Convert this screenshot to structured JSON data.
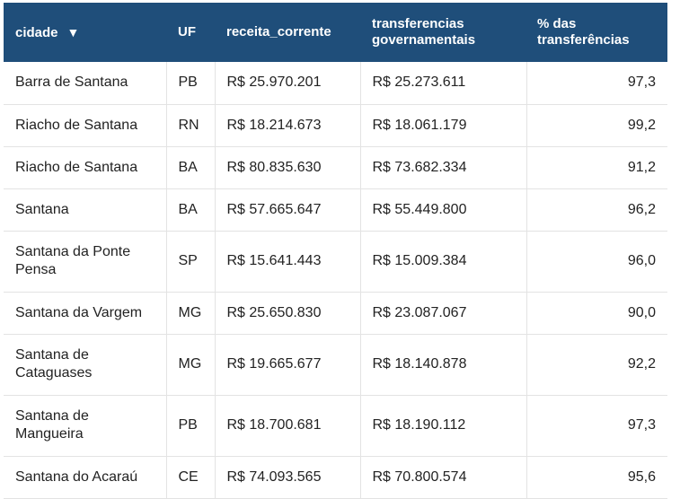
{
  "chart_data": {
    "type": "table",
    "columns": [
      "cidade",
      "UF",
      "receita_corrente",
      "transferencias governamentais",
      "% das transferências"
    ],
    "sort": {
      "column": "cidade",
      "icon": "sort-down-icon"
    },
    "rows": [
      [
        "Barra de Santana",
        "PB",
        "R$ 25.970.201",
        "R$ 25.273.611",
        "97,3"
      ],
      [
        "Riacho de Santana",
        "RN",
        "R$ 18.214.673",
        "R$ 18.061.179",
        "99,2"
      ],
      [
        "Riacho de Santana",
        "BA",
        "R$ 80.835.630",
        "R$ 73.682.334",
        "91,2"
      ],
      [
        "Santana",
        "BA",
        "R$ 57.665.647",
        "R$ 55.449.800",
        "96,2"
      ],
      [
        "Santana da Ponte Pensa",
        "SP",
        "R$ 15.641.443",
        "R$ 15.009.384",
        "96,0"
      ],
      [
        "Santana da Vargem",
        "MG",
        "R$ 25.650.830",
        "R$ 23.087.067",
        "90,0"
      ],
      [
        "Santana de Cataguases",
        "MG",
        "R$ 19.665.677",
        "R$ 18.140.878",
        "92,2"
      ],
      [
        "Santana de Mangueira",
        "PB",
        "R$ 18.700.681",
        "R$ 18.190.112",
        "97,3"
      ],
      [
        "Santana do Acaraú",
        "CE",
        "R$ 74.093.565",
        "R$ 70.800.574",
        "95,6"
      ]
    ]
  },
  "colors": {
    "header_bg": "#1f4e7a",
    "header_text": "#ffffff",
    "grid": "#e3e3e3"
  }
}
